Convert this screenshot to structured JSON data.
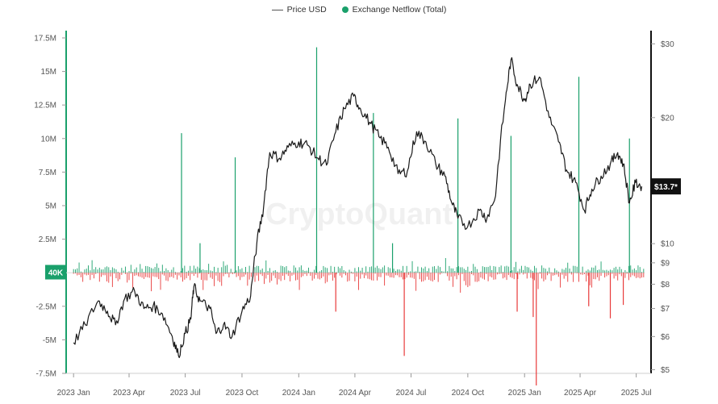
{
  "chart_data": {
    "type": "line",
    "watermark": "CryptoQuant",
    "legend": {
      "placement": "top-center",
      "items": [
        {
          "label": "Price USD",
          "marker": "line"
        },
        {
          "label": "Exchange Netflow (Total)",
          "marker": "dot"
        }
      ]
    },
    "colors": {
      "price": "#1a1a1a",
      "netflow_axis": "#1aa06b",
      "inflow": "#1aa06b",
      "outflow": "#e83a3a",
      "badge_green": "#1aa06b",
      "badge_black": "#111111"
    },
    "x_axis": {
      "ticks": [
        {
          "date": "2023-01-01",
          "label": "2023 Jan"
        },
        {
          "date": "2023-04-01",
          "label": "2023 Apr"
        },
        {
          "date": "2023-07-01",
          "label": "2023 Jul"
        },
        {
          "date": "2023-10-01",
          "label": "2023 Oct"
        },
        {
          "date": "2024-01-01",
          "label": "2024 Jan"
        },
        {
          "date": "2024-04-01",
          "label": "2024 Apr"
        },
        {
          "date": "2024-07-01",
          "label": "2024 Jul"
        },
        {
          "date": "2024-10-01",
          "label": "2024 Oct"
        },
        {
          "date": "2025-01-01",
          "label": "2025 Jan"
        },
        {
          "date": "2025-04-01",
          "label": "2025 Apr"
        },
        {
          "date": "2025-07-01",
          "label": "2025 Jul"
        }
      ],
      "range": [
        "2022-12-20",
        "2025-07-25"
      ]
    },
    "y_left": {
      "name": "Exchange Netflow (Total)",
      "scale": "linear",
      "range": [
        -7.5,
        17.5
      ],
      "unit": "M",
      "ticks": [
        {
          "v": 17.5,
          "label": "17.5M"
        },
        {
          "v": 15,
          "label": "15M"
        },
        {
          "v": 12.5,
          "label": "12.5M"
        },
        {
          "v": 10,
          "label": "10M"
        },
        {
          "v": 7.5,
          "label": "7.5M"
        },
        {
          "v": 5,
          "label": "5M"
        },
        {
          "v": 2.5,
          "label": "2.5M"
        },
        {
          "v": -2.5,
          "label": "-2.5M"
        },
        {
          "v": -5,
          "label": "-5M"
        },
        {
          "v": -7.5,
          "label": "-7.5M"
        }
      ],
      "current_badge": "40K",
      "current_value": 0.04
    },
    "y_right": {
      "name": "Price USD",
      "scale": "log",
      "range": [
        4.9,
        31
      ],
      "ticks": [
        {
          "v": 30,
          "label": "$30"
        },
        {
          "v": 20,
          "label": "$20"
        },
        {
          "v": 10,
          "label": "$10"
        },
        {
          "v": 9,
          "label": "$9"
        },
        {
          "v": 8,
          "label": "$8"
        },
        {
          "v": 7,
          "label": "$7"
        },
        {
          "v": 6,
          "label": "$6"
        },
        {
          "v": 5,
          "label": "$5"
        }
      ],
      "current_badge": "$13.7*",
      "current_value": 13.7
    },
    "price_series": [
      [
        "2023-01-01",
        5.8
      ],
      [
        "2023-01-20",
        6.4
      ],
      [
        "2023-02-10",
        7.3
      ],
      [
        "2023-02-25",
        6.9
      ],
      [
        "2023-03-10",
        6.4
      ],
      [
        "2023-03-25",
        7.4
      ],
      [
        "2023-04-10",
        7.7
      ],
      [
        "2023-04-25",
        7.0
      ],
      [
        "2023-05-10",
        7.1
      ],
      [
        "2023-05-25",
        6.8
      ],
      [
        "2023-06-10",
        6.0
      ],
      [
        "2023-06-20",
        5.4
      ],
      [
        "2023-07-01",
        6.1
      ],
      [
        "2023-07-10",
        6.6
      ],
      [
        "2023-07-15",
        7.9
      ],
      [
        "2023-07-25",
        7.3
      ],
      [
        "2023-08-10",
        7.0
      ],
      [
        "2023-08-20",
        6.1
      ],
      [
        "2023-09-01",
        6.4
      ],
      [
        "2023-09-15",
        6.0
      ],
      [
        "2023-10-01",
        6.9
      ],
      [
        "2023-10-15",
        7.5
      ],
      [
        "2023-10-25",
        10.0
      ],
      [
        "2023-11-05",
        12.2
      ],
      [
        "2023-11-15",
        16.5
      ],
      [
        "2023-12-01",
        16.0
      ],
      [
        "2023-12-15",
        17.0
      ],
      [
        "2024-01-01",
        17.5
      ],
      [
        "2024-01-15",
        17.2
      ],
      [
        "2024-02-01",
        16.0
      ],
      [
        "2024-02-15",
        15.4
      ],
      [
        "2024-03-01",
        18.5
      ],
      [
        "2024-03-15",
        21.0
      ],
      [
        "2024-03-30",
        22.5
      ],
      [
        "2024-04-10",
        21.0
      ],
      [
        "2024-04-25",
        19.5
      ],
      [
        "2024-05-10",
        18.0
      ],
      [
        "2024-05-25",
        17.0
      ],
      [
        "2024-06-10",
        14.7
      ],
      [
        "2024-06-25",
        14.9
      ],
      [
        "2024-07-10",
        18.5
      ],
      [
        "2024-07-25",
        17.5
      ],
      [
        "2024-08-10",
        15.5
      ],
      [
        "2024-08-25",
        14.5
      ],
      [
        "2024-09-05",
        12.5
      ],
      [
        "2024-09-15",
        11.5
      ],
      [
        "2024-10-01",
        11.0
      ],
      [
        "2024-10-20",
        12.0
      ],
      [
        "2024-11-01",
        11.5
      ],
      [
        "2024-11-15",
        13.0
      ],
      [
        "2024-12-01",
        22.0
      ],
      [
        "2024-12-10",
        27.5
      ],
      [
        "2024-12-20",
        24.0
      ],
      [
        "2025-01-01",
        22.0
      ],
      [
        "2025-01-10",
        24.0
      ],
      [
        "2025-01-25",
        25.0
      ],
      [
        "2025-02-10",
        20.0
      ],
      [
        "2025-02-25",
        17.5
      ],
      [
        "2025-03-10",
        15.0
      ],
      [
        "2025-03-25",
        14.0
      ],
      [
        "2025-04-08",
        12.0
      ],
      [
        "2025-04-20",
        13.5
      ],
      [
        "2025-05-05",
        14.5
      ],
      [
        "2025-05-20",
        15.5
      ],
      [
        "2025-06-01",
        16.5
      ],
      [
        "2025-06-10",
        15.5
      ],
      [
        "2025-06-20",
        12.5
      ],
      [
        "2025-06-30",
        14.0
      ],
      [
        "2025-07-10",
        13.7
      ]
    ],
    "netflow_spikes": [
      [
        "2023-06-25",
        10.4
      ],
      [
        "2023-07-25",
        2.2
      ],
      [
        "2023-09-20",
        8.6
      ],
      [
        "2024-01-30",
        16.8
      ],
      [
        "2024-05-01",
        11.9
      ],
      [
        "2024-06-01",
        2.2
      ],
      [
        "2024-09-15",
        11.5
      ],
      [
        "2024-12-10",
        10.2
      ],
      [
        "2025-03-30",
        14.6
      ],
      [
        "2025-06-20",
        10.0
      ]
    ],
    "netflow_dips": [
      [
        "2024-03-01",
        -2.9
      ],
      [
        "2024-06-20",
        -6.2
      ],
      [
        "2024-12-20",
        -2.9
      ],
      [
        "2025-01-15",
        -3.3
      ],
      [
        "2025-01-20",
        -8.4
      ],
      [
        "2025-04-15",
        -2.5
      ],
      [
        "2025-05-20",
        -3.4
      ],
      [
        "2025-06-10",
        -2.4
      ]
    ]
  }
}
